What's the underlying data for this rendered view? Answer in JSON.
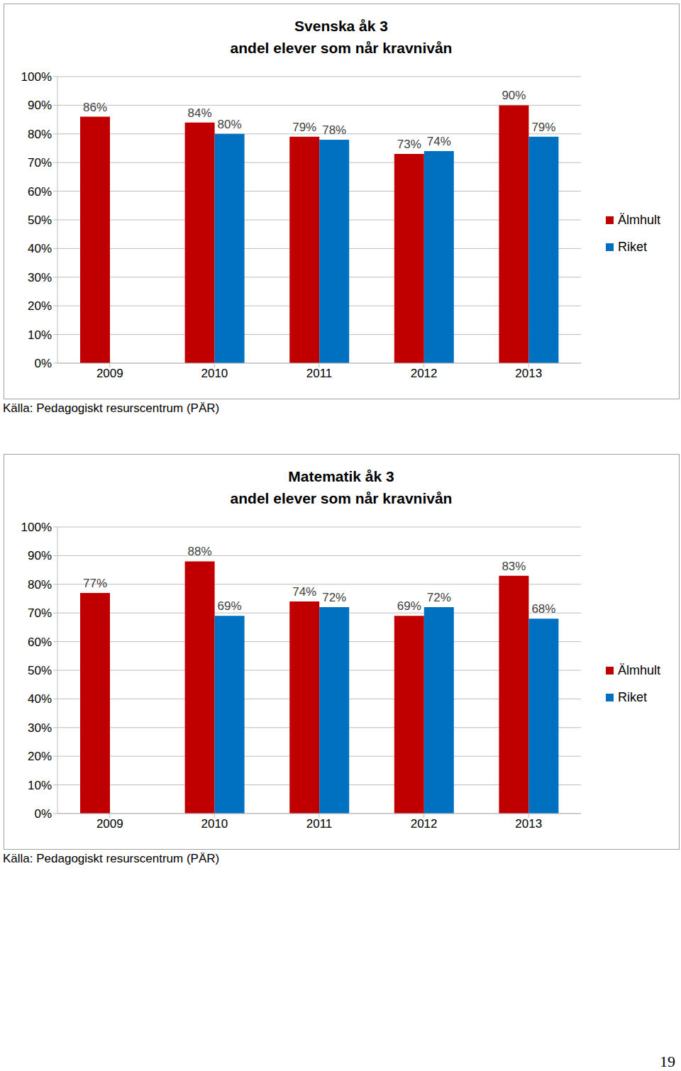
{
  "chart_data": [
    {
      "type": "bar",
      "title": "Svenska åk 3",
      "subtitle": "andel elever som når kravnivån",
      "categories": [
        "2009",
        "2010",
        "2011",
        "2012",
        "2013"
      ],
      "series": [
        {
          "name": "Älmhult",
          "color": "#c00000",
          "values": [
            86,
            84,
            79,
            73,
            90
          ],
          "value_labels": [
            "86%",
            "84%",
            "79%",
            "73%",
            "90%"
          ]
        },
        {
          "name": "Riket",
          "color": "#0070c0",
          "values": [
            null,
            80,
            78,
            74,
            79
          ],
          "value_labels": [
            null,
            "80%",
            "78%",
            "74%",
            "79%"
          ]
        }
      ],
      "ylim": [
        0,
        100
      ],
      "yticks": [
        {
          "value": 0,
          "label": "0%"
        },
        {
          "value": 10,
          "label": "10%"
        },
        {
          "value": 20,
          "label": "20%"
        },
        {
          "value": 30,
          "label": "30%"
        },
        {
          "value": 40,
          "label": "40%"
        },
        {
          "value": 50,
          "label": "50%"
        },
        {
          "value": 60,
          "label": "60%"
        },
        {
          "value": 70,
          "label": "70%"
        },
        {
          "value": 80,
          "label": "80%"
        },
        {
          "value": 90,
          "label": "90%"
        },
        {
          "value": 100,
          "label": "100%"
        }
      ],
      "grid": true,
      "legend": "right",
      "data_labels": true,
      "annotations": [
        "Källa: Pedagogiskt resurscentrum (PÄR)"
      ]
    },
    {
      "type": "bar",
      "title": "Matematik åk 3",
      "subtitle": "andel elever som når kravnivån",
      "categories": [
        "2009",
        "2010",
        "2011",
        "2012",
        "2013"
      ],
      "series": [
        {
          "name": "Älmhult",
          "color": "#c00000",
          "values": [
            77,
            88,
            74,
            69,
            83
          ],
          "value_labels": [
            "77%",
            "88%",
            "74%",
            "69%",
            "83%"
          ]
        },
        {
          "name": "Riket",
          "color": "#0070c0",
          "values": [
            null,
            69,
            72,
            72,
            68
          ],
          "value_labels": [
            null,
            "69%",
            "72%",
            "72%",
            "68%"
          ]
        }
      ],
      "ylim": [
        0,
        100
      ],
      "yticks": [
        {
          "value": 0,
          "label": "0%"
        },
        {
          "value": 10,
          "label": "10%"
        },
        {
          "value": 20,
          "label": "20%"
        },
        {
          "value": 30,
          "label": "30%"
        },
        {
          "value": 40,
          "label": "40%"
        },
        {
          "value": 50,
          "label": "50%"
        },
        {
          "value": 60,
          "label": "60%"
        },
        {
          "value": 70,
          "label": "70%"
        },
        {
          "value": 80,
          "label": "80%"
        },
        {
          "value": 90,
          "label": "90%"
        },
        {
          "value": 100,
          "label": "100%"
        }
      ],
      "grid": true,
      "legend": "right",
      "data_labels": true,
      "annotations": [
        "Källa: Pedagogiskt resurscentrum (PÄR)"
      ]
    }
  ],
  "page_number": "19"
}
